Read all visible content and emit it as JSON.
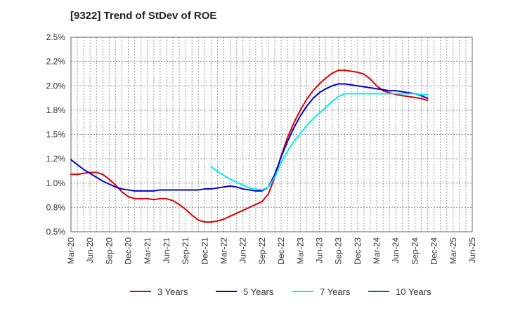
{
  "chart_data": {
    "type": "line",
    "title": "[9322]  Trend of StDev of ROE",
    "ylim": [
      0.5,
      2.5
    ],
    "y_ticks": [
      0.5,
      0.75,
      1.0,
      1.25,
      1.5,
      1.75,
      2.0,
      2.25,
      2.5
    ],
    "y_tick_labels": [
      "0.5%",
      "0.8%",
      "1.0%",
      "1.2%",
      "1.5%",
      "1.8%",
      "2.0%",
      "2.2%",
      "2.5%"
    ],
    "x_tick_labels": [
      "Mar-20",
      "Jun-20",
      "Sep-20",
      "Dec-20",
      "Mar-21",
      "Jun-21",
      "Sep-21",
      "Dec-21",
      "Mar-22",
      "Jun-22",
      "Sep-22",
      "Dec-22",
      "Mar-23",
      "Jun-23",
      "Sep-23",
      "Dec-23",
      "Mar-24",
      "Jun-24",
      "Sep-24",
      "Dec-24",
      "Mar-25",
      "Jun-25"
    ],
    "grid": true,
    "legend_position": "bottom",
    "series": [
      {
        "name": "3 Years",
        "color": "#dd0000",
        "values": [
          1.09,
          1.09,
          1.1,
          1.11,
          1.11,
          1.09,
          1.04,
          0.98,
          0.91,
          0.86,
          0.84,
          0.84,
          0.84,
          0.83,
          0.84,
          0.84,
          0.82,
          0.78,
          0.73,
          0.67,
          0.62,
          0.6,
          0.6,
          0.61,
          0.63,
          0.66,
          0.69,
          0.72,
          0.75,
          0.78,
          0.81,
          0.89,
          1.06,
          1.28,
          1.47,
          1.62,
          1.75,
          1.86,
          1.95,
          2.02,
          2.08,
          2.13,
          2.16,
          2.16,
          2.15,
          2.14,
          2.12,
          2.07,
          2.0,
          1.95,
          1.93,
          1.91,
          1.9,
          1.89,
          1.88,
          1.87,
          1.85
        ]
      },
      {
        "name": "5 Years",
        "color": "#0000cc",
        "values": [
          1.24,
          1.19,
          1.14,
          1.1,
          1.06,
          1.02,
          0.99,
          0.96,
          0.94,
          0.93,
          0.92,
          0.92,
          0.92,
          0.92,
          0.93,
          0.93,
          0.93,
          0.93,
          0.93,
          0.93,
          0.93,
          0.94,
          0.94,
          0.95,
          0.96,
          0.97,
          0.96,
          0.94,
          0.93,
          0.92,
          0.92,
          0.96,
          1.09,
          1.27,
          1.43,
          1.57,
          1.69,
          1.79,
          1.87,
          1.93,
          1.97,
          2.0,
          2.02,
          2.02,
          2.01,
          2.0,
          1.99,
          1.98,
          1.97,
          1.96,
          1.95,
          1.95,
          1.94,
          1.93,
          1.92,
          1.9,
          1.87
        ]
      },
      {
        "name": "7 Years",
        "color": "#00eeee",
        "values": [
          null,
          null,
          null,
          null,
          null,
          null,
          null,
          null,
          null,
          null,
          null,
          null,
          null,
          null,
          null,
          null,
          null,
          null,
          null,
          null,
          null,
          null,
          1.17,
          1.12,
          1.08,
          1.04,
          1.01,
          0.98,
          0.95,
          0.94,
          0.93,
          0.96,
          1.06,
          1.21,
          1.33,
          1.43,
          1.51,
          1.59,
          1.66,
          1.72,
          1.78,
          1.84,
          1.89,
          1.92,
          1.92,
          1.92,
          1.92,
          1.92,
          1.92,
          1.92,
          1.92,
          1.92,
          1.92,
          1.92,
          1.92,
          1.91,
          1.91
        ]
      },
      {
        "name": "10 Years",
        "color": "#008000",
        "values": []
      }
    ]
  }
}
